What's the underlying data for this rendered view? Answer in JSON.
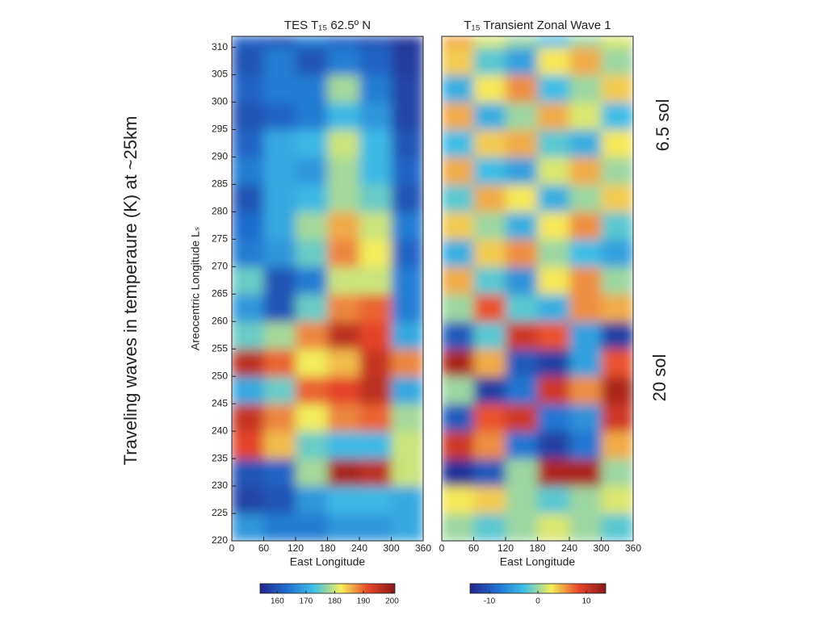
{
  "slide": {
    "side_label": "Traveling waves in temperaure (K) at ~25km",
    "annotations": [
      "6.5 sol",
      "20 sol"
    ]
  },
  "chart_data": [
    {
      "type": "heatmap",
      "title": "TES T₁₅ 62.5º N",
      "x_label": "East Longitude",
      "y_label": "Areocentric Longitude Lₛ",
      "x_bins": [
        0,
        60,
        120,
        180,
        240,
        300,
        360
      ],
      "y_bins": [
        220,
        225,
        230,
        235,
        240,
        245,
        250,
        255,
        260,
        265,
        270,
        275,
        280,
        285,
        290,
        295,
        300,
        305,
        310,
        312
      ],
      "xlim": [
        0,
        360
      ],
      "xticks": [
        0,
        60,
        120,
        180,
        240,
        300,
        360
      ],
      "ylim": [
        220,
        312
      ],
      "yticks": [
        220,
        225,
        230,
        235,
        240,
        245,
        250,
        255,
        260,
        265,
        270,
        275,
        280,
        285,
        290,
        295,
        300,
        305,
        310
      ],
      "zlim": [
        154,
        201
      ],
      "colorbar_ticks": [
        160,
        170,
        180,
        190,
        200
      ],
      "colormap": [
        "#24248a",
        "#1f6fd0",
        "#3fc0e6",
        "#f6ee5a",
        "#e8462a",
        "#8a1818"
      ],
      "values": [
        [
          168,
          165,
          165,
          168,
          168,
          170
        ],
        [
          158,
          160,
          168,
          172,
          172,
          170
        ],
        [
          160,
          162,
          178,
          198,
          196,
          180
        ],
        [
          192,
          185,
          175,
          172,
          172,
          180
        ],
        [
          195,
          188,
          182,
          188,
          190,
          178
        ],
        [
          170,
          175,
          190,
          192,
          196,
          170
        ],
        [
          196,
          190,
          182,
          185,
          195,
          188
        ],
        [
          175,
          178,
          188,
          196,
          192,
          170
        ],
        [
          168,
          160,
          175,
          188,
          190,
          165
        ],
        [
          175,
          160,
          165,
          180,
          180,
          165
        ],
        [
          165,
          168,
          175,
          188,
          182,
          162
        ],
        [
          163,
          170,
          178,
          186,
          180,
          165
        ],
        [
          160,
          170,
          172,
          178,
          175,
          160
        ],
        [
          165,
          170,
          168,
          178,
          172,
          162
        ],
        [
          162,
          170,
          172,
          180,
          172,
          160
        ],
        [
          160,
          162,
          165,
          172,
          168,
          158
        ],
        [
          162,
          165,
          165,
          178,
          165,
          158
        ],
        [
          160,
          165,
          160,
          165,
          162,
          157
        ],
        [
          162,
          160,
          165,
          162,
          160,
          156
        ]
      ]
    },
    {
      "type": "heatmap",
      "title": "T₁₅ Transient Zonal Wave 1",
      "x_label": "East Longitude",
      "x_bins": [
        0,
        60,
        120,
        180,
        240,
        300,
        360
      ],
      "y_bins": [
        220,
        225,
        230,
        235,
        240,
        245,
        250,
        255,
        260,
        265,
        270,
        275,
        280,
        285,
        290,
        295,
        300,
        305,
        310,
        312
      ],
      "xlim": [
        0,
        360
      ],
      "xticks": [
        0,
        60,
        120,
        180,
        240,
        300,
        360
      ],
      "ylim": [
        220,
        312
      ],
      "zlim": [
        -14,
        14
      ],
      "colorbar_ticks": [
        -10,
        0,
        10
      ],
      "colormap": [
        "#24248a",
        "#1f6fd0",
        "#3fc0e6",
        "#f6ee5a",
        "#e8462a",
        "#8a1818"
      ],
      "values": [
        [
          0,
          -2,
          0,
          2,
          0,
          -2
        ],
        [
          3,
          4,
          0,
          -2,
          0,
          2
        ],
        [
          -13,
          -10,
          0,
          12,
          12,
          0
        ],
        [
          10,
          6,
          -8,
          -12,
          -8,
          5
        ],
        [
          -10,
          8,
          10,
          -8,
          -6,
          10
        ],
        [
          0,
          -12,
          -8,
          10,
          6,
          12
        ],
        [
          12,
          5,
          -10,
          -12,
          -5,
          8
        ],
        [
          -10,
          -2,
          10,
          8,
          -5,
          -12
        ],
        [
          0,
          8,
          -2,
          -4,
          6,
          5
        ],
        [
          5,
          -2,
          -6,
          3,
          6,
          0
        ],
        [
          -4,
          4,
          6,
          0,
          -3,
          -5
        ],
        [
          4,
          0,
          -4,
          3,
          6,
          -2
        ],
        [
          -2,
          5,
          3,
          -4,
          0,
          4
        ],
        [
          5,
          -3,
          -5,
          2,
          5,
          0
        ],
        [
          -3,
          4,
          5,
          -2,
          -4,
          3
        ],
        [
          5,
          -4,
          0,
          5,
          2,
          -3
        ],
        [
          -4,
          3,
          6,
          -3,
          0,
          4
        ],
        [
          4,
          -2,
          -5,
          3,
          5,
          0
        ],
        [
          5,
          2,
          0,
          -3,
          0,
          2
        ]
      ]
    }
  ]
}
